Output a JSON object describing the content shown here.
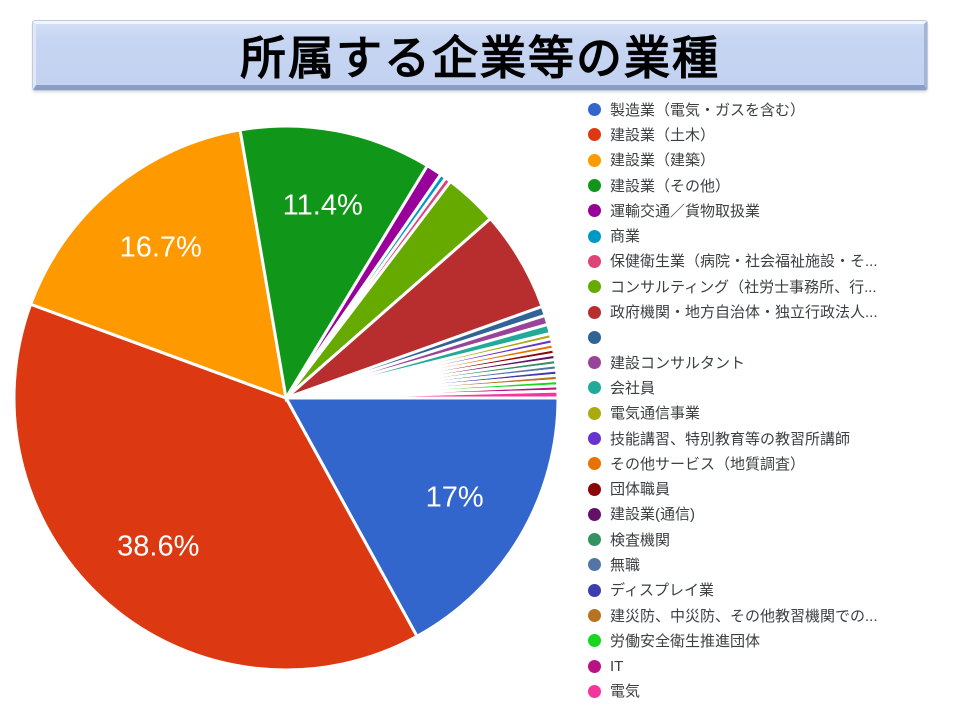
{
  "slide": {
    "title": "所属する企業等の業種"
  },
  "chart_data": {
    "type": "pie",
    "title": "所属する企業等の業種",
    "legend_position": "right",
    "start_angle_deg_from_top_clockwise": 90,
    "unit": "%",
    "slice_gap_color": "#ffffff",
    "slices": [
      {
        "label": "製造業（電気・ガスを含む）",
        "value": 17.0,
        "display_label": "17%",
        "color": "#3366CC"
      },
      {
        "label": "建設業（土木）",
        "value": 38.6,
        "display_label": "38.6%",
        "color": "#DC3912"
      },
      {
        "label": "建設業（建築）",
        "value": 16.7,
        "display_label": "16.7%",
        "color": "#FF9900"
      },
      {
        "label": "建設業（その他）",
        "value": 11.4,
        "display_label": "11.4%",
        "color": "#109618"
      },
      {
        "label": "運輸交通／貨物取扱業",
        "value": 0.94,
        "color": "#990099"
      },
      {
        "label": "商業",
        "value": 0.35,
        "color": "#0099C6"
      },
      {
        "label": "保健衛生業（病院・社会福祉施設・そ...",
        "value": 0.35,
        "color": "#DD4477"
      },
      {
        "label": "コンサルティング（社労士事務所、行...",
        "value": 3.2,
        "color": "#66AA00"
      },
      {
        "label": "政府機関・地方自治体・独立行政法人...",
        "value": 6.0,
        "color": "#B82E2E"
      },
      {
        "label": "",
        "value": 0.55,
        "color": "#316395"
      },
      {
        "label": "建設コンサルタント",
        "value": 0.55,
        "color": "#994499"
      },
      {
        "label": "会社員",
        "value": 0.55,
        "color": "#22AA99"
      },
      {
        "label": "電気通信事業",
        "value": 0.31,
        "color": "#AAAA11"
      },
      {
        "label": "技能講習、特別教育等の教習所講師",
        "value": 0.31,
        "color": "#6633CC"
      },
      {
        "label": "その他サービス（地質調査）",
        "value": 0.31,
        "color": "#E67300"
      },
      {
        "label": "団体職員",
        "value": 0.31,
        "color": "#8B0707"
      },
      {
        "label": "建設業(通信)",
        "value": 0.31,
        "color": "#651067"
      },
      {
        "label": "検査機関",
        "value": 0.31,
        "color": "#329262"
      },
      {
        "label": "無職",
        "value": 0.31,
        "color": "#5574A6"
      },
      {
        "label": "ディスプレイ業",
        "value": 0.31,
        "color": "#3B3EAC"
      },
      {
        "label": "建災防、中災防、その他教習機関での...",
        "value": 0.31,
        "color": "#B77322"
      },
      {
        "label": "労働安全衛生推進団体",
        "value": 0.31,
        "color": "#16D620"
      },
      {
        "label": "IT",
        "value": 0.31,
        "color": "#B91383"
      },
      {
        "label": "電気",
        "value": 0.4,
        "color": "#F4359E"
      }
    ]
  }
}
